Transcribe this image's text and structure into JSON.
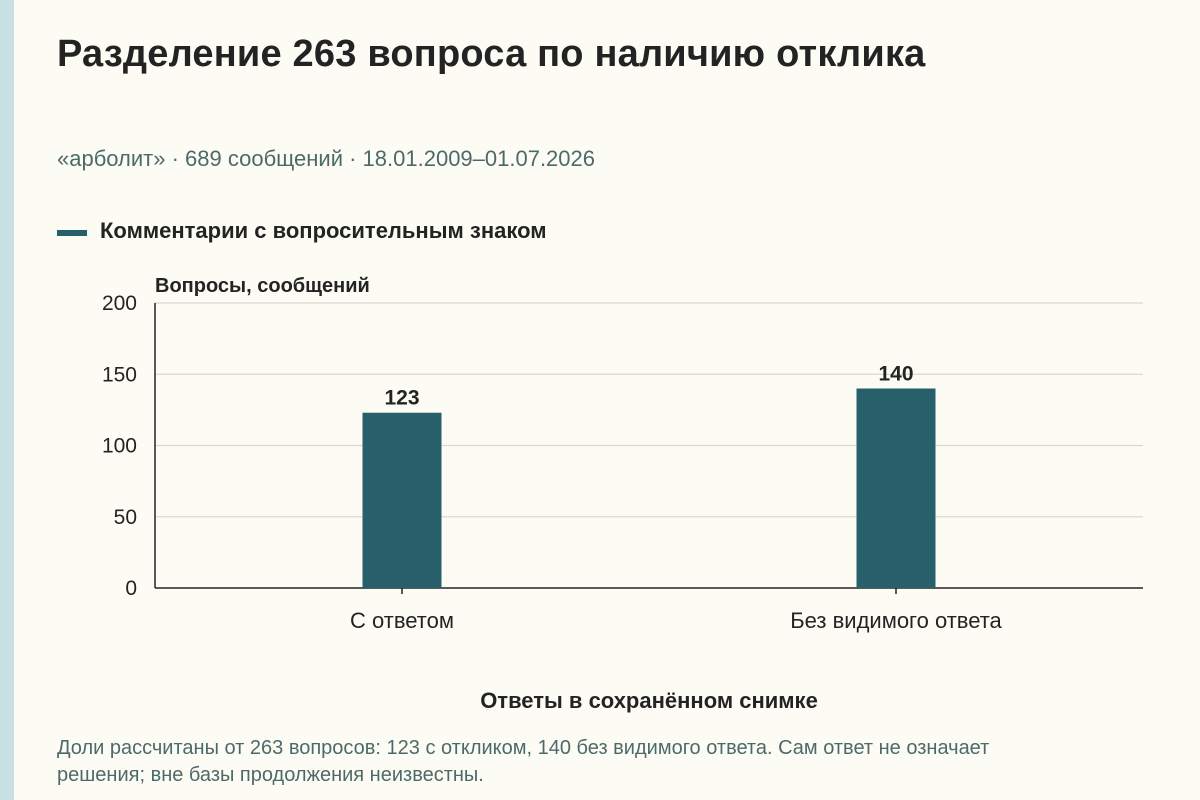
{
  "title": "Разделение 263 вопроса по наличию отклика",
  "subtitle": "«арболит» · 689 сообщений · 18.01.2009–01.07.2026",
  "footnote": "Доли рассчитаны от 263 вопросов: 123 с откликом, 140 без видимого ответа. Сам ответ не означает решения; вне базы продолжения неизвестны.",
  "colors": {
    "bar": "#27606b",
    "grid": "#d9d9d2",
    "axis": "#232323",
    "text": "#232323",
    "muted": "#4d6a6a",
    "background": "#fdfcf4",
    "accent_strip": "#c8e0e1"
  },
  "chart_data": {
    "type": "bar",
    "categories": [
      "С ответом",
      "Без видимого ответа"
    ],
    "series": [
      {
        "name": "Комментарии с вопросительным знаком",
        "values": [
          123,
          140
        ]
      }
    ],
    "data_labels": [
      "123",
      "140"
    ],
    "xlabel": "Ответы в сохранённом снимке",
    "ylabel": "Вопросы, сообщений",
    "ylim": [
      0,
      200
    ],
    "yticks": [
      0,
      50,
      100,
      150,
      200
    ],
    "grid": true,
    "legend": "top-left"
  }
}
